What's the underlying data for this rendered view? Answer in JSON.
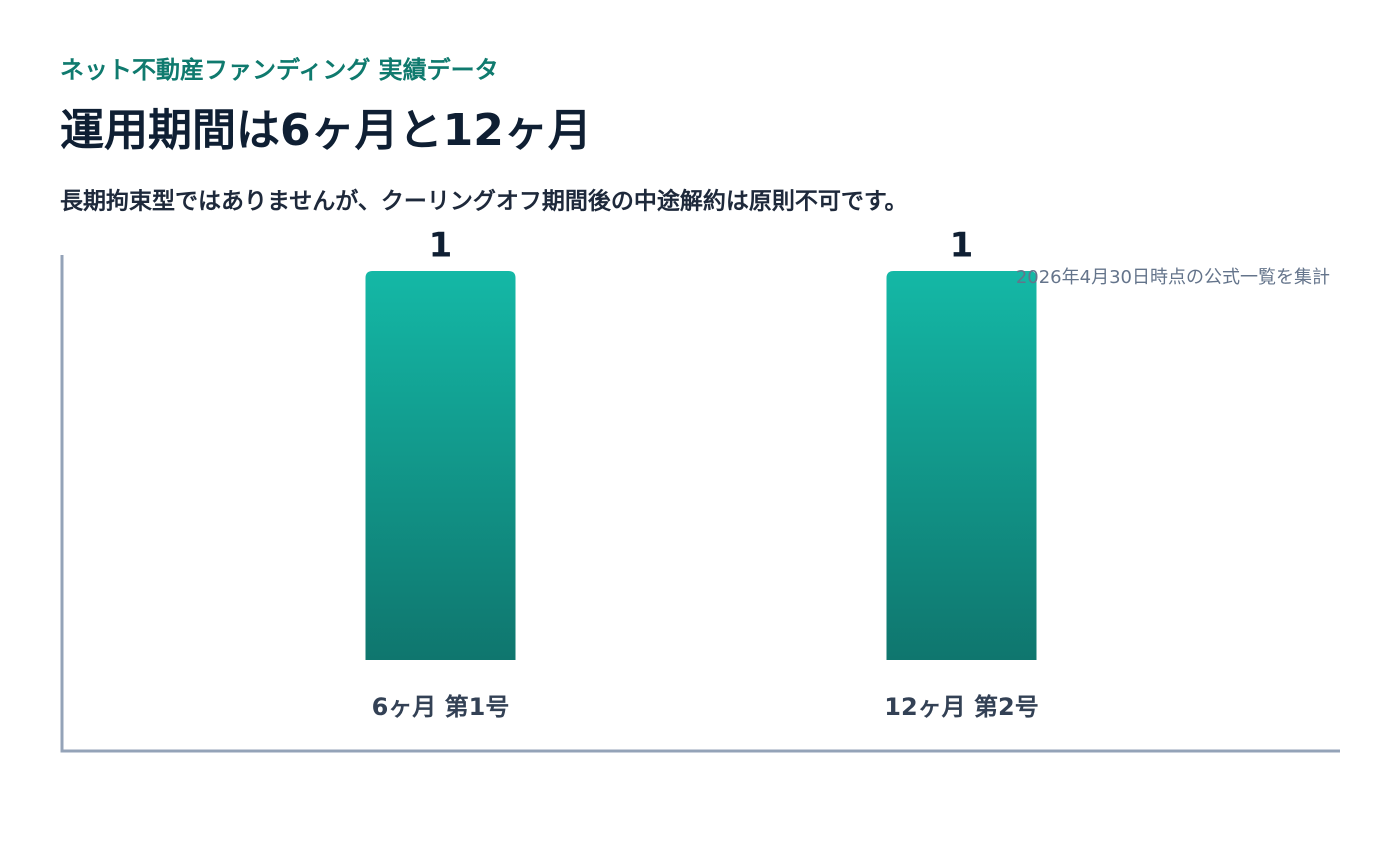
{
  "chart_data": {
    "type": "bar",
    "kicker": "ネット不動産ファンディング 実績データ",
    "title": "運用期間は6ヶ月と12ヶ月",
    "subtitle": "長期拘束型ではありませんが、クーリングオフ期間後の中途解約は原則不可です。",
    "note": "2026年4月30日時点の公式一覧を集計",
    "categories": [
      "6ヶ月 第1号",
      "12ヶ月 第2号"
    ],
    "values": [
      1,
      1
    ],
    "color": "#14b8a6",
    "ylim": [
      0,
      1
    ]
  }
}
